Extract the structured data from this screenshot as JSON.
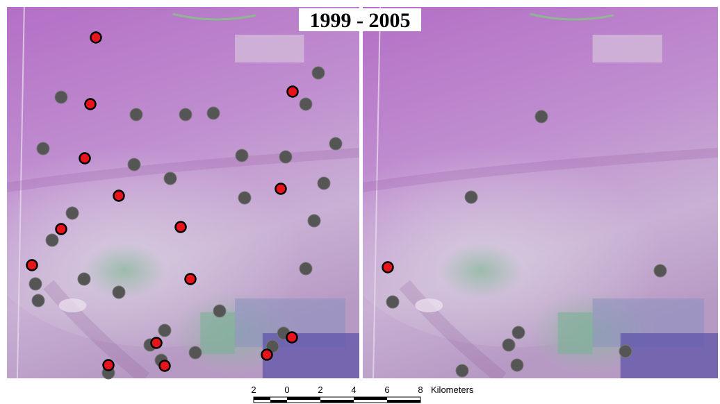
{
  "title": "1999 - 2005",
  "scale_bar": {
    "labels": [
      "2",
      "0",
      "2",
      "4",
      "6",
      "8"
    ],
    "unit": "Kilometers"
  }
}
